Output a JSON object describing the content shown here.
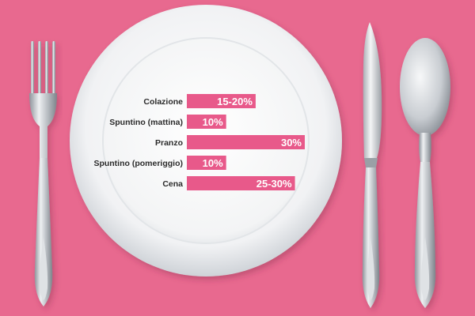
{
  "colors": {
    "background": "#e8698f",
    "bar": "#e8598a",
    "plate": "#f4f5f6",
    "silver": "#b9bdc2"
  },
  "icons": {
    "fork": "fork-icon",
    "knife": "knife-icon",
    "spoon": "spoon-icon",
    "plate": "plate-icon"
  },
  "chart_data": {
    "type": "bar",
    "orientation": "horizontal",
    "categories": [
      "Colazione",
      "Spuntino (mattina)",
      "Pranzo",
      "Spuntino (pomeriggio)",
      "Cena"
    ],
    "values": [
      17.5,
      10,
      30,
      10,
      27.5
    ],
    "value_labels": [
      "15-20%",
      "10%",
      "30%",
      "10%",
      "25-30%"
    ],
    "xlim": [
      0,
      30
    ],
    "grid": false,
    "legend": "none"
  }
}
